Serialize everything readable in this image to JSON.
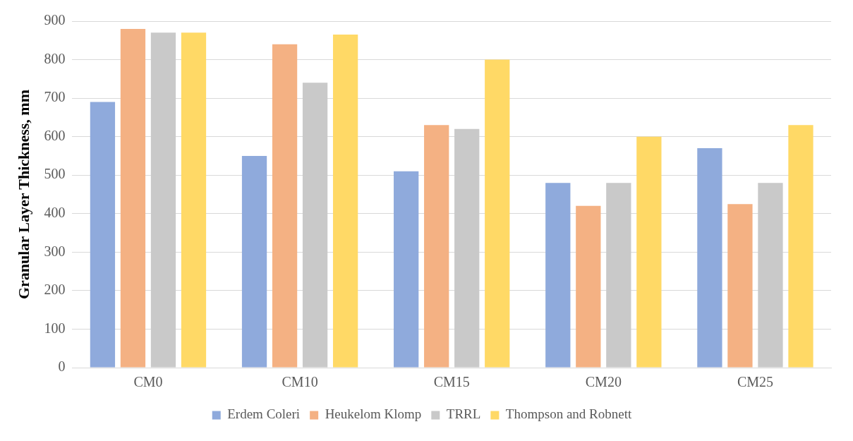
{
  "chart_data": {
    "type": "bar",
    "ylabel": "Granular Layer Thickness, mm",
    "categories": [
      "CM0",
      "CM10",
      "CM15",
      "CM20",
      "CM25"
    ],
    "series": [
      {
        "name": "Erdem Coleri",
        "color": "#8faadc",
        "values": [
          690,
          550,
          510,
          480,
          570
        ]
      },
      {
        "name": "Heukelom Klomp",
        "color": "#f4b183",
        "values": [
          880,
          840,
          630,
          420,
          425
        ]
      },
      {
        "name": "TRRL",
        "color": "#c9c9c9",
        "values": [
          870,
          740,
          620,
          480,
          480
        ]
      },
      {
        "name": "Thompson and Robnett",
        "color": "#ffd966",
        "values": [
          870,
          865,
          800,
          600,
          630
        ]
      }
    ],
    "ylim": [
      0,
      900
    ],
    "yticks": [
      0,
      100,
      200,
      300,
      400,
      500,
      600,
      700,
      800,
      900
    ],
    "grid": "y",
    "legend": "bottom"
  }
}
